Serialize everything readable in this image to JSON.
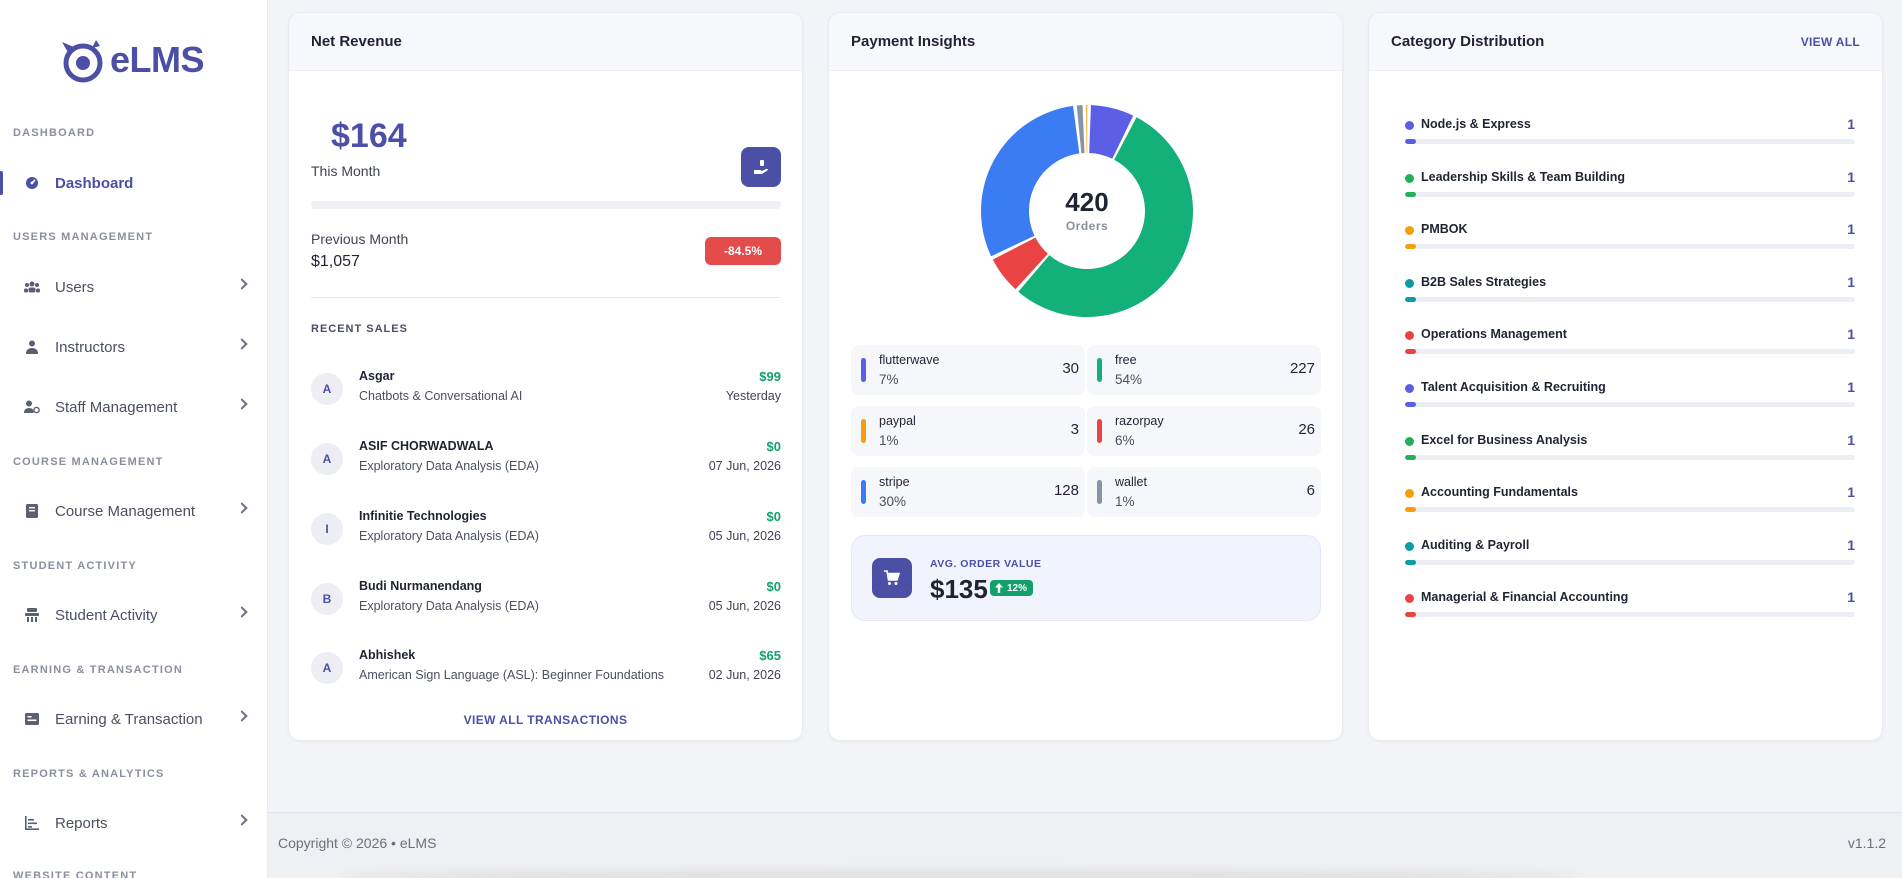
{
  "app": {
    "logo_text": "eLMS"
  },
  "sidebar": {
    "sections": [
      {
        "label": "DASHBOARD",
        "items": [
          {
            "label": "Dashboard",
            "icon": "dashboard-icon",
            "active": true
          }
        ]
      },
      {
        "label": "USERS MANAGEMENT",
        "items": [
          {
            "label": "Users",
            "icon": "users-icon"
          },
          {
            "label": "Instructors",
            "icon": "instructor-icon"
          },
          {
            "label": "Staff Management",
            "icon": "staff-icon"
          }
        ]
      },
      {
        "label": "COURSE MANAGEMENT",
        "items": [
          {
            "label": "Course Management",
            "icon": "book-icon"
          }
        ]
      },
      {
        "label": "STUDENT ACTIVITY",
        "items": [
          {
            "label": "Student Activity",
            "icon": "student-icon"
          }
        ]
      },
      {
        "label": "EARNING & TRANSACTION",
        "items": [
          {
            "label": "Earning & Transaction",
            "icon": "money-icon"
          }
        ]
      },
      {
        "label": "REPORTS & ANALYTICS",
        "items": [
          {
            "label": "Reports",
            "icon": "reports-icon"
          }
        ]
      },
      {
        "label": "WEBSITE CONTENT",
        "items": []
      }
    ]
  },
  "net_revenue": {
    "title": "Net Revenue",
    "amount": "$164",
    "amount_label": "This Month",
    "progress_fraction": 0.0,
    "previous_label": "Previous Month",
    "previous_amount": "$1,057",
    "change_badge": "-84.5%",
    "recent_label": "RECENT SALES",
    "sales": [
      {
        "initial": "A",
        "name": "Asgar",
        "course": "Chatbots & Conversational AI",
        "amount": "$99",
        "date": "Yesterday"
      },
      {
        "initial": "A",
        "name": "ASIF CHORWADWALA",
        "course": "Exploratory Data Analysis (EDA)",
        "amount": "$0",
        "date": "07 Jun, 2026"
      },
      {
        "initial": "I",
        "name": "Infinitie Technologies",
        "course": "Exploratory Data Analysis (EDA)",
        "amount": "$0",
        "date": "05 Jun, 2026"
      },
      {
        "initial": "B",
        "name": "Budi Nurmanendang",
        "course": "Exploratory Data Analysis (EDA)",
        "amount": "$0",
        "date": "05 Jun, 2026"
      },
      {
        "initial": "A",
        "name": "Abhishek",
        "course": "American Sign Language (ASL): Beginner Foundations",
        "amount": "$65",
        "date": "02 Jun, 2026"
      }
    ],
    "view_all_label": "VIEW ALL TRANSACTIONS"
  },
  "payment_insights": {
    "title": "Payment Insights",
    "total": "420",
    "total_label": "Orders",
    "methods": [
      {
        "name": "flutterwave",
        "percent": "7%",
        "count": "30",
        "value": 30,
        "color": "#5b5fe6"
      },
      {
        "name": "free",
        "percent": "54%",
        "count": "227",
        "value": 227,
        "color": "#13b07a"
      },
      {
        "name": "paypal",
        "percent": "1%",
        "count": "3",
        "value": 3,
        "color": "#f59e0b"
      },
      {
        "name": "razorpay",
        "percent": "6%",
        "count": "26",
        "value": 26,
        "color": "#ea4343"
      },
      {
        "name": "stripe",
        "percent": "30%",
        "count": "128",
        "value": 128,
        "color": "#3b7cf2"
      },
      {
        "name": "wallet",
        "percent": "1%",
        "count": "6",
        "value": 6,
        "color": "#8893a6"
      }
    ],
    "aov_label": "AVG. ORDER VALUE",
    "aov_value": "$135",
    "aov_change": "12%"
  },
  "category_distribution": {
    "title": "Category Distribution",
    "view_all_label": "VIEW ALL",
    "categories": [
      {
        "name": "Node.js & Express",
        "count": "1",
        "color": "#5b5fe6",
        "fill": 0.02
      },
      {
        "name": "Leadership Skills & Team Building",
        "count": "1",
        "color": "#22b05a",
        "fill": 0.02
      },
      {
        "name": "PMBOK",
        "count": "1",
        "color": "#f59e0b",
        "fill": 0.02
      },
      {
        "name": "B2B Sales Strategies",
        "count": "1",
        "color": "#0e9aa7",
        "fill": 0.02
      },
      {
        "name": "Operations Management",
        "count": "1",
        "color": "#ea4343",
        "fill": 0.02
      },
      {
        "name": "Talent Acquisition & Recruiting",
        "count": "1",
        "color": "#5b5fe6",
        "fill": 0.02
      },
      {
        "name": "Excel for Business Analysis",
        "count": "1",
        "color": "#22b05a",
        "fill": 0.02
      },
      {
        "name": "Accounting Fundamentals",
        "count": "1",
        "color": "#f59e0b",
        "fill": 0.02
      },
      {
        "name": "Auditing & Payroll",
        "count": "1",
        "color": "#0e9aa7",
        "fill": 0.02
      },
      {
        "name": "Managerial & Financial Accounting",
        "count": "1",
        "color": "#ea4343",
        "fill": 0.02
      }
    ]
  },
  "footer": {
    "copyright": "Copyright © 2026  •  eLMS",
    "version": "v1.1.2"
  }
}
